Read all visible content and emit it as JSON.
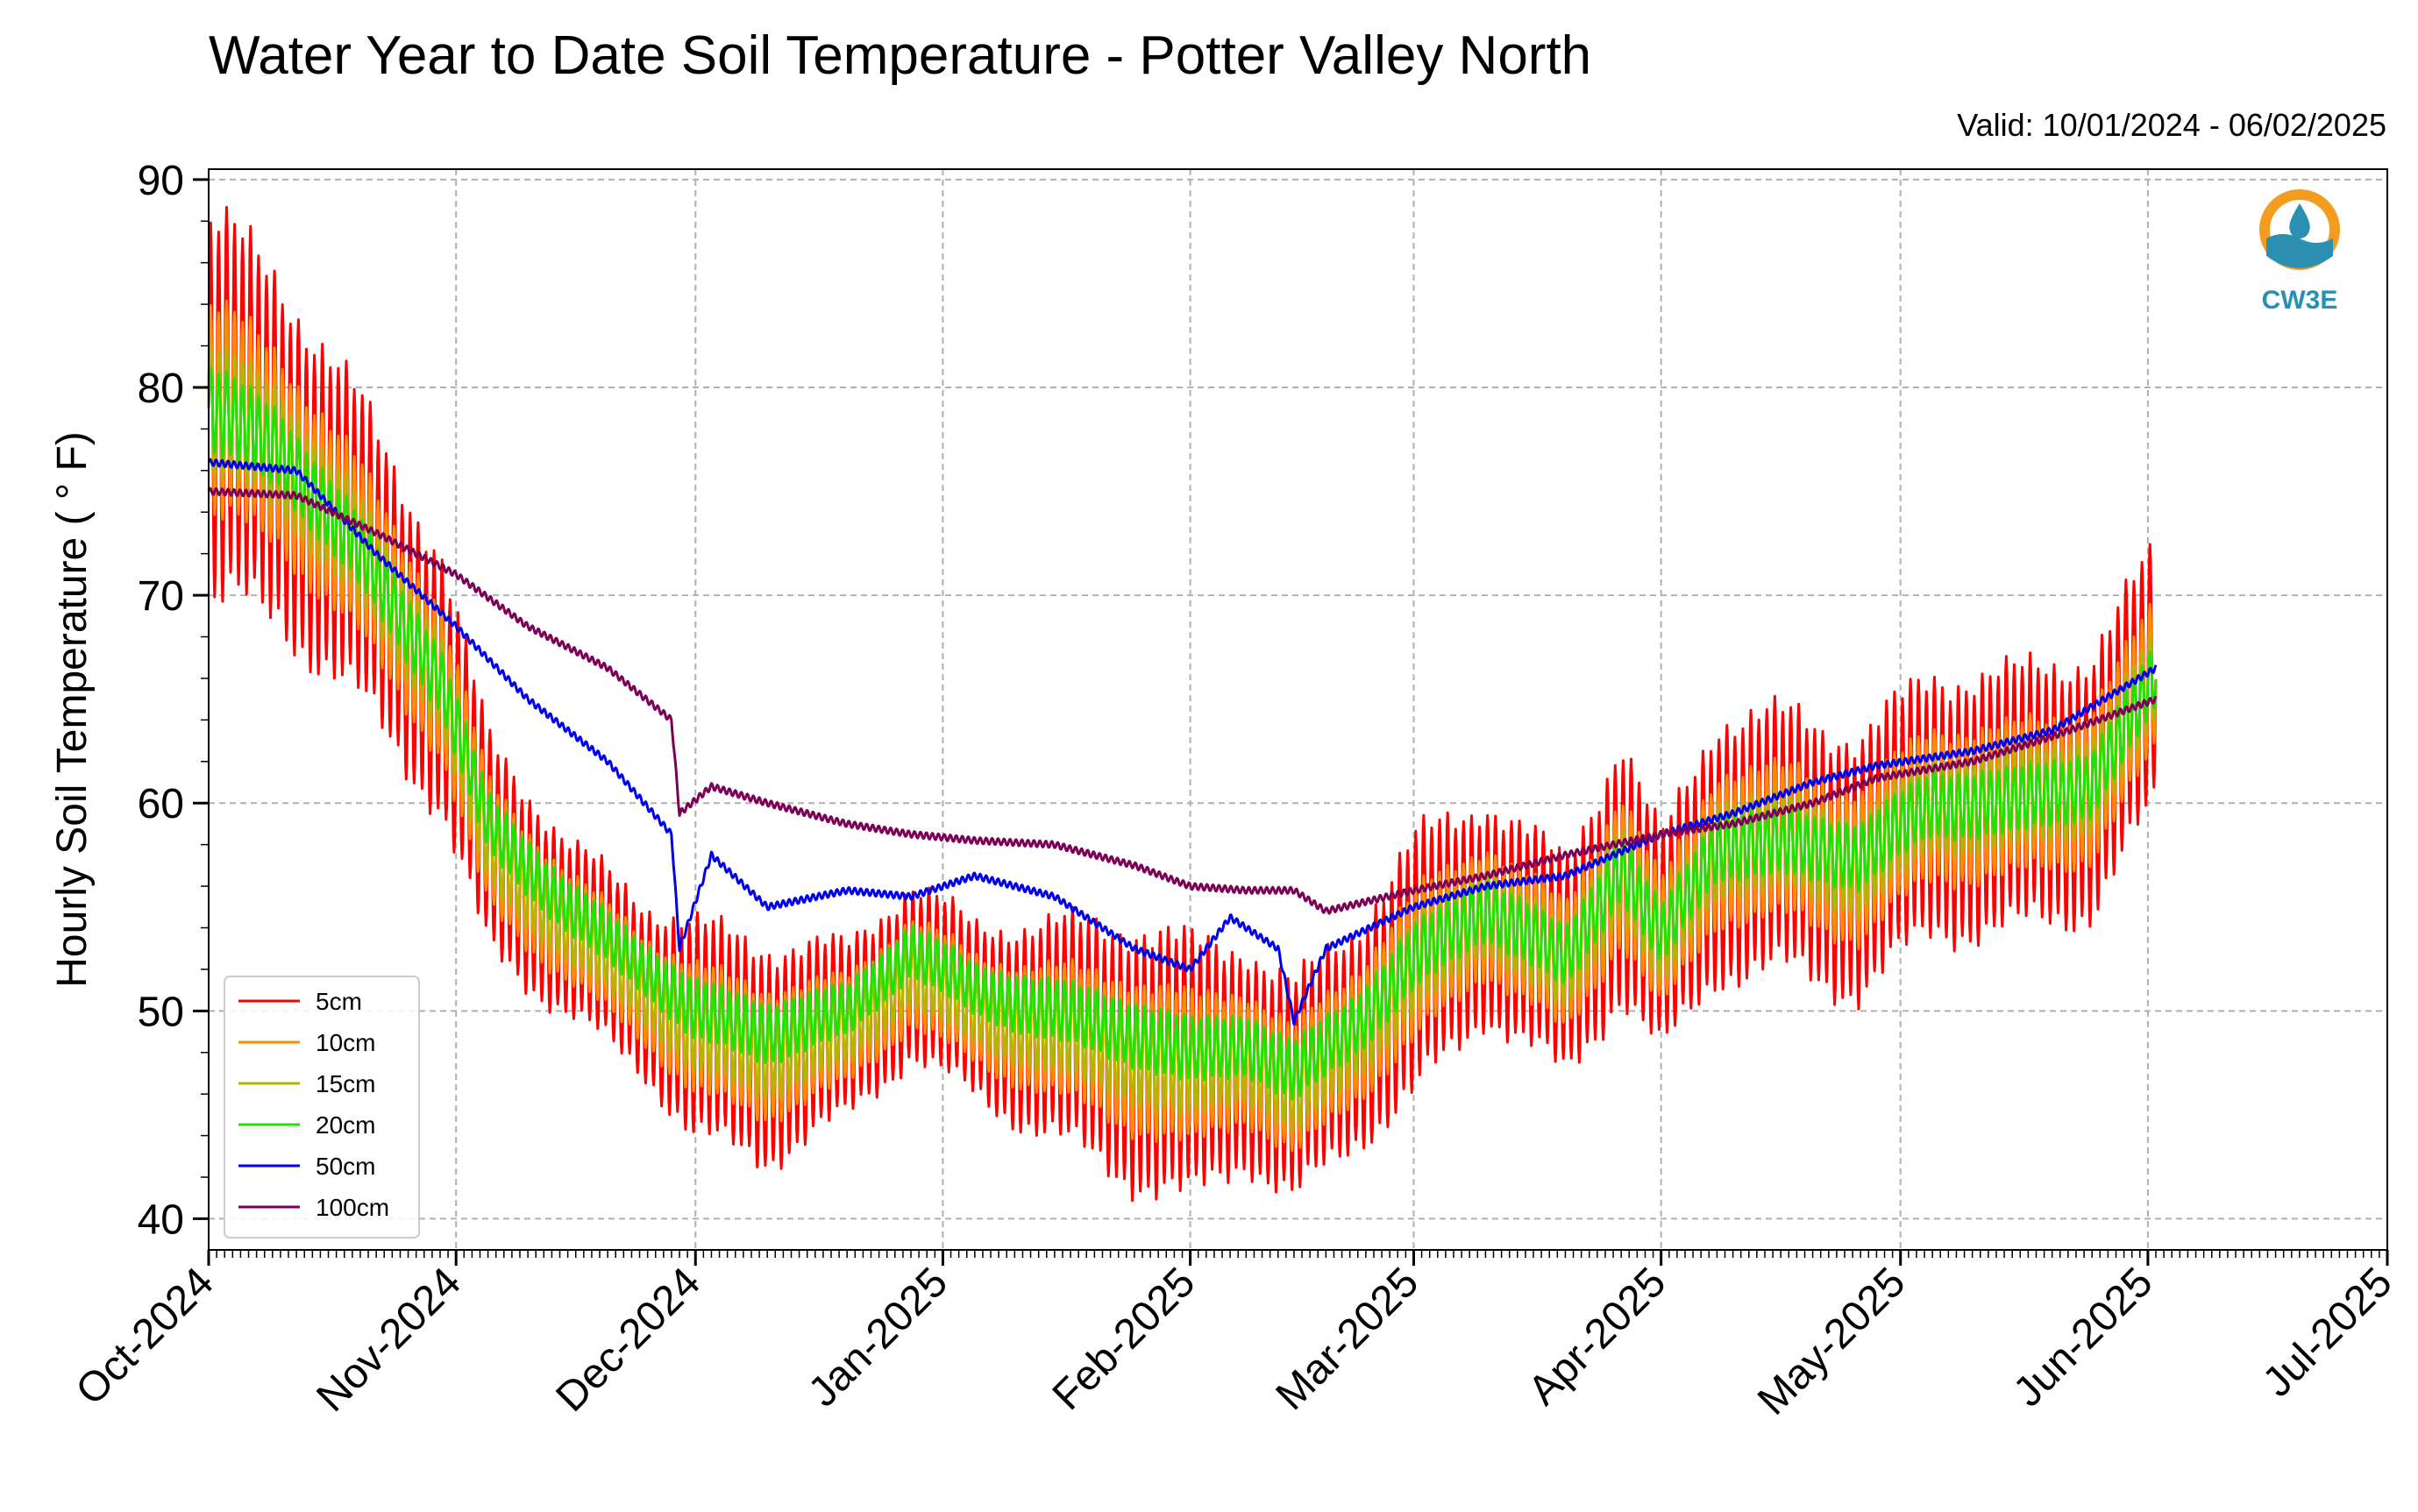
{
  "header": {
    "title": "Water Year to Date Soil Temperature - Potter Valley North",
    "valid": "Valid: 10/01/2024 - 06/02/2025"
  },
  "logo": {
    "text": "CW3E",
    "icon": "cw3e-logo-icon",
    "accent": "#f39c1f",
    "brand": "#2a8fb0"
  },
  "chart_data": {
    "type": "line",
    "title": "Water Year to Date Soil Temperature - Potter Valley North",
    "subtitle": "Valid: 10/01/2024 - 06/02/2025",
    "xlabel": "",
    "ylabel": "Hourly Soil Temperature ( ° F)",
    "xlim": [
      "2024-10-01",
      "2025-07-01"
    ],
    "ylim": [
      38.5,
      90.5
    ],
    "grid": true,
    "legend_position": "lower-left",
    "x_ticks": [
      "Oct-2024",
      "Nov-2024",
      "Dec-2024",
      "Jan-2025",
      "Feb-2025",
      "Mar-2025",
      "Apr-2025",
      "May-2025",
      "Jun-2025",
      "Jul-2025"
    ],
    "y_ticks": [
      40,
      50,
      60,
      70,
      80,
      90
    ],
    "series": [
      {
        "name": "5cm",
        "color": "#ff0000",
        "x": [
          "2024-10-01",
          "2024-10-10",
          "2024-10-20",
          "2024-10-30",
          "2024-11-05",
          "2024-11-15",
          "2024-11-25",
          "2024-12-01",
          "2024-12-10",
          "2024-12-20",
          "2024-12-28",
          "2025-01-05",
          "2025-01-15",
          "2025-01-25",
          "2025-02-01",
          "2025-02-08",
          "2025-02-14",
          "2025-02-22",
          "2025-03-01",
          "2025-03-10",
          "2025-03-20",
          "2025-03-27",
          "2025-04-01",
          "2025-04-08",
          "2025-04-18",
          "2025-04-26",
          "2025-05-05",
          "2025-05-15",
          "2025-05-25",
          "2025-06-02"
        ],
        "center": [
          79,
          77,
          72,
          66,
          58,
          54,
          51,
          49,
          48,
          49,
          52,
          50,
          49,
          48,
          47,
          48,
          46,
          49,
          52,
          55,
          52,
          57,
          53,
          58,
          58,
          57,
          60,
          60,
          61,
          66
        ],
        "swing": [
          9,
          8,
          7,
          6,
          5,
          4,
          4,
          5,
          5,
          4,
          4,
          4,
          5,
          6,
          6,
          5,
          5,
          5,
          6,
          5,
          5,
          6,
          5,
          6,
          6,
          6,
          6,
          6,
          6,
          6
        ]
      },
      {
        "name": "10cm",
        "color": "#ff8c00",
        "x": [
          "2024-10-01",
          "2024-10-10",
          "2024-10-20",
          "2024-10-30",
          "2024-11-05",
          "2024-11-15",
          "2024-11-25",
          "2024-12-01",
          "2024-12-10",
          "2024-12-20",
          "2024-12-28",
          "2025-01-05",
          "2025-01-15",
          "2025-01-25",
          "2025-02-01",
          "2025-02-08",
          "2025-02-14",
          "2025-02-22",
          "2025-03-01",
          "2025-03-10",
          "2025-03-20",
          "2025-03-27",
          "2025-04-01",
          "2025-04-08",
          "2025-04-18",
          "2025-04-26",
          "2025-05-05",
          "2025-05-15",
          "2025-05-25",
          "2025-06-02"
        ],
        "center": [
          79,
          77,
          72,
          66,
          58,
          54,
          51,
          49,
          48,
          49,
          52,
          50,
          49,
          48,
          47,
          48,
          46,
          49,
          52,
          55,
          52,
          57,
          53,
          58,
          58,
          57,
          60,
          60,
          61,
          66
        ],
        "swing": [
          5,
          4.5,
          4,
          3.5,
          3,
          2.5,
          2.5,
          3,
          3,
          2.5,
          2.5,
          2.5,
          3,
          3.5,
          3.5,
          3,
          3,
          3,
          3.5,
          3,
          3,
          3.5,
          3,
          3.5,
          3.5,
          3.5,
          3.5,
          3.5,
          3.5,
          3.5
        ]
      },
      {
        "name": "15cm",
        "color": "#b5b500",
        "x": [
          "2024-10-01",
          "2024-10-10",
          "2024-10-20",
          "2024-10-30",
          "2024-11-05",
          "2024-11-15",
          "2024-11-25",
          "2024-12-01",
          "2024-12-10",
          "2024-12-20",
          "2024-12-28",
          "2025-01-05",
          "2025-01-15",
          "2025-01-25",
          "2025-02-01",
          "2025-02-08",
          "2025-02-14",
          "2025-02-22",
          "2025-03-01",
          "2025-03-10",
          "2025-03-20",
          "2025-03-27",
          "2025-04-01",
          "2025-04-08",
          "2025-04-18",
          "2025-04-26",
          "2025-05-05",
          "2025-05-15",
          "2025-05-25",
          "2025-06-02"
        ],
        "center": [
          79,
          77,
          72,
          66,
          58,
          54,
          51,
          49,
          48,
          49,
          52,
          50,
          49,
          48,
          47,
          48,
          46,
          49,
          52,
          55,
          52,
          57,
          53,
          58,
          58,
          57,
          60,
          60,
          61,
          66
        ],
        "swing": [
          3,
          2.8,
          2.5,
          2.2,
          2,
          1.6,
          1.6,
          2,
          2,
          1.6,
          1.6,
          1.6,
          2,
          2.2,
          2.2,
          2,
          2,
          2,
          2.2,
          2,
          2,
          2.2,
          2,
          2.2,
          2.2,
          2.2,
          2.2,
          2.2,
          2.2,
          2.2
        ]
      },
      {
        "name": "20cm",
        "color": "#22e000",
        "x": [
          "2024-10-01",
          "2024-10-10",
          "2024-10-20",
          "2024-10-30",
          "2024-11-05",
          "2024-11-15",
          "2024-11-25",
          "2024-12-01",
          "2024-12-10",
          "2024-12-20",
          "2024-12-28",
          "2025-01-05",
          "2025-01-15",
          "2025-01-25",
          "2025-02-01",
          "2025-02-08",
          "2025-02-14",
          "2025-02-22",
          "2025-03-01",
          "2025-03-10",
          "2025-03-20",
          "2025-03-27",
          "2025-04-01",
          "2025-04-08",
          "2025-04-18",
          "2025-04-26",
          "2025-05-05",
          "2025-05-15",
          "2025-05-25",
          "2025-06-02"
        ],
        "center": [
          79,
          77,
          72,
          66,
          59,
          55,
          52,
          50,
          49,
          50,
          53,
          51,
          50,
          49,
          48,
          48.5,
          47,
          49.5,
          52.5,
          55,
          52.5,
          57,
          53.5,
          58,
          58,
          57.5,
          60,
          60,
          61,
          66
        ],
        "swing": [
          2,
          1.8,
          1.6,
          1.5,
          1.4,
          1.2,
          1.2,
          1.4,
          1.4,
          1.2,
          1.2,
          1.2,
          1.4,
          1.5,
          1.5,
          1.4,
          1.4,
          1.4,
          1.5,
          1.4,
          1.4,
          1.5,
          1.4,
          1.5,
          1.5,
          1.5,
          1.5,
          1.5,
          1.5,
          1.5
        ]
      },
      {
        "name": "50cm",
        "color": "#0000ee",
        "x": [
          "2024-10-01",
          "2024-10-12",
          "2024-10-22",
          "2024-11-01",
          "2024-11-10",
          "2024-11-20",
          "2024-11-28",
          "2024-11-29",
          "2024-12-03",
          "2024-12-10",
          "2024-12-20",
          "2024-12-28",
          "2025-01-05",
          "2025-01-15",
          "2025-01-25",
          "2025-02-01",
          "2025-02-06",
          "2025-02-12",
          "2025-02-14",
          "2025-02-18",
          "2025-03-01",
          "2025-03-10",
          "2025-03-20",
          "2025-04-01",
          "2025-04-10",
          "2025-04-20",
          "2025-04-28",
          "2025-05-10",
          "2025-05-20",
          "2025-06-02"
        ],
        "y": [
          76.4,
          76.0,
          72.0,
          68.5,
          65.0,
          62.0,
          58.5,
          53.0,
          57.5,
          55.0,
          55.8,
          55.5,
          56.5,
          55.5,
          53.0,
          52.0,
          54.5,
          53.0,
          49.5,
          53.0,
          55.0,
          56.0,
          56.5,
          58.5,
          59.5,
          61.0,
          61.8,
          62.5,
          63.5,
          66.5
        ]
      },
      {
        "name": "100cm",
        "color": "#7b0056",
        "x": [
          "2024-10-01",
          "2024-10-12",
          "2024-10-22",
          "2024-11-01",
          "2024-11-10",
          "2024-11-20",
          "2024-11-28",
          "2024-11-29",
          "2024-12-03",
          "2024-12-10",
          "2024-12-20",
          "2024-12-28",
          "2025-01-05",
          "2025-01-15",
          "2025-01-25",
          "2025-02-01",
          "2025-02-08",
          "2025-02-14",
          "2025-02-18",
          "2025-03-01",
          "2025-03-10",
          "2025-03-20",
          "2025-04-01",
          "2025-04-10",
          "2025-04-20",
          "2025-04-28",
          "2025-05-10",
          "2025-05-20",
          "2025-06-02"
        ],
        "y": [
          75.0,
          74.8,
          73.0,
          71.0,
          68.5,
          66.5,
          64.0,
          59.5,
          60.8,
          60.0,
          59.0,
          58.5,
          58.2,
          58.0,
          57.0,
          56.0,
          55.8,
          55.8,
          54.8,
          55.8,
          56.5,
          57.5,
          58.5,
          59.0,
          60.0,
          61.2,
          62.0,
          63.2,
          65.0
        ]
      }
    ]
  }
}
